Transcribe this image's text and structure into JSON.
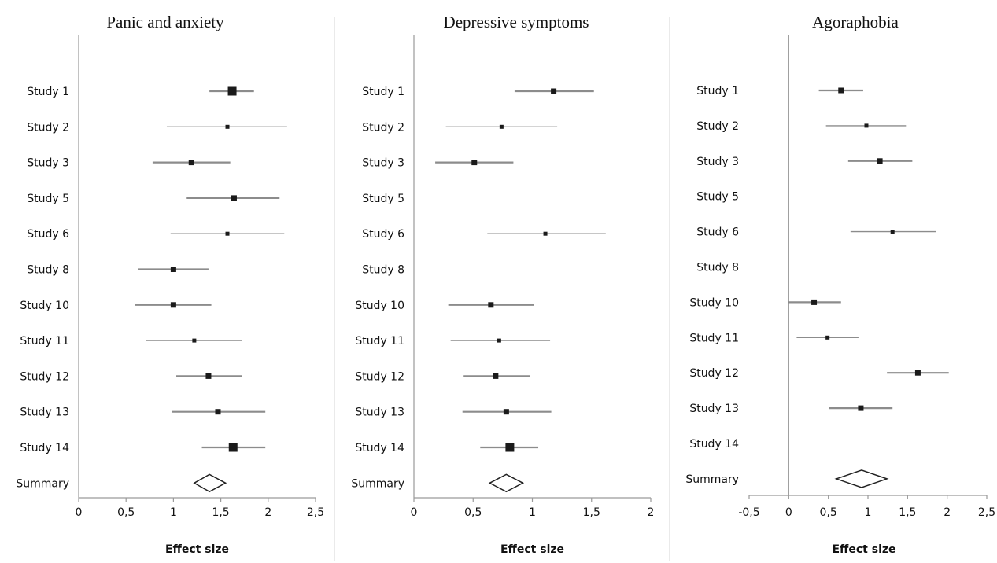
{
  "chart_data": [
    {
      "type": "scatter",
      "title": "Panic and anxiety",
      "xlabel": "Effect size",
      "xlim": [
        0,
        2.5
      ],
      "xticks": [
        0,
        0.5,
        1,
        1.5,
        2,
        2.5
      ],
      "xtick_labels": [
        "0",
        "0,5",
        "1",
        "1,5",
        "2",
        "2,5"
      ],
      "rows": [
        {
          "label": "Study 1",
          "estimate": 1.62,
          "ci": [
            1.38,
            1.85
          ],
          "weight": 3
        },
        {
          "label": "Study 2",
          "estimate": 1.57,
          "ci": [
            0.93,
            2.2
          ],
          "weight": 1
        },
        {
          "label": "Study 3",
          "estimate": 1.19,
          "ci": [
            0.78,
            1.6
          ],
          "weight": 2
        },
        {
          "label": "Study 5",
          "estimate": 1.64,
          "ci": [
            1.14,
            2.12
          ],
          "weight": 2
        },
        {
          "label": "Study 6",
          "estimate": 1.57,
          "ci": [
            0.97,
            2.17
          ],
          "weight": 1
        },
        {
          "label": "Study 8",
          "estimate": 1.0,
          "ci": [
            0.63,
            1.37
          ],
          "weight": 2
        },
        {
          "label": "Study 10",
          "estimate": 1.0,
          "ci": [
            0.59,
            1.4
          ],
          "weight": 2
        },
        {
          "label": "Study 11",
          "estimate": 1.22,
          "ci": [
            0.71,
            1.72
          ],
          "weight": 1
        },
        {
          "label": "Study 12",
          "estimate": 1.37,
          "ci": [
            1.03,
            1.72
          ],
          "weight": 2
        },
        {
          "label": "Study 13",
          "estimate": 1.47,
          "ci": [
            0.98,
            1.97
          ],
          "weight": 2
        },
        {
          "label": "Study 14",
          "estimate": 1.63,
          "ci": [
            1.3,
            1.97
          ],
          "weight": 3
        }
      ],
      "summary": {
        "label": "Summary",
        "estimate": 1.38,
        "ci": [
          1.22,
          1.55
        ]
      }
    },
    {
      "type": "scatter",
      "title": "Depressive symptoms",
      "xlabel": "Effect size",
      "xlim": [
        0,
        2
      ],
      "xticks": [
        0,
        0.5,
        1,
        1.5,
        2
      ],
      "xtick_labels": [
        "0",
        "0,5",
        "1",
        "1,5",
        "2"
      ],
      "rows": [
        {
          "label": "Study 1",
          "estimate": 1.18,
          "ci": [
            0.85,
            1.52
          ],
          "weight": 2
        },
        {
          "label": "Study 2",
          "estimate": 0.74,
          "ci": [
            0.27,
            1.21
          ],
          "weight": 1
        },
        {
          "label": "Study 3",
          "estimate": 0.51,
          "ci": [
            0.18,
            0.84
          ],
          "weight": 2
        },
        {
          "label": "Study 5",
          "estimate": null,
          "ci": null,
          "weight": 0
        },
        {
          "label": "Study 6",
          "estimate": 1.11,
          "ci": [
            0.62,
            1.62
          ],
          "weight": 1
        },
        {
          "label": "Study 8",
          "estimate": null,
          "ci": null,
          "weight": 0
        },
        {
          "label": "Study 10",
          "estimate": 0.65,
          "ci": [
            0.29,
            1.01
          ],
          "weight": 2
        },
        {
          "label": "Study 11",
          "estimate": 0.72,
          "ci": [
            0.31,
            1.15
          ],
          "weight": 1
        },
        {
          "label": "Study 12",
          "estimate": 0.69,
          "ci": [
            0.42,
            0.98
          ],
          "weight": 2
        },
        {
          "label": "Study 13",
          "estimate": 0.78,
          "ci": [
            0.41,
            1.16
          ],
          "weight": 2
        },
        {
          "label": "Study 14",
          "estimate": 0.81,
          "ci": [
            0.56,
            1.05
          ],
          "weight": 3
        }
      ],
      "summary": {
        "label": "Summary",
        "estimate": 0.78,
        "ci": [
          0.64,
          0.92
        ]
      }
    },
    {
      "type": "scatter",
      "title": "Agoraphobia",
      "xlabel": "Effect size",
      "xlim": [
        -0.5,
        2.5
      ],
      "xticks": [
        -0.5,
        0,
        0.5,
        1,
        1.5,
        2,
        2.5
      ],
      "xtick_labels": [
        "-0,5",
        "0",
        "0,5",
        "1",
        "1,5",
        "2",
        "2,5"
      ],
      "rows": [
        {
          "label": "Study 1",
          "estimate": 0.66,
          "ci": [
            0.38,
            0.94
          ],
          "weight": 2
        },
        {
          "label": "Study 2",
          "estimate": 0.98,
          "ci": [
            0.47,
            1.48
          ],
          "weight": 1
        },
        {
          "label": "Study 3",
          "estimate": 1.15,
          "ci": [
            0.75,
            1.56
          ],
          "weight": 2
        },
        {
          "label": "Study 5",
          "estimate": null,
          "ci": null,
          "weight": 0
        },
        {
          "label": "Study 6",
          "estimate": 1.31,
          "ci": [
            0.78,
            1.86
          ],
          "weight": 1
        },
        {
          "label": "Study 8",
          "estimate": null,
          "ci": null,
          "weight": 0
        },
        {
          "label": "Study 10",
          "estimate": 0.32,
          "ci": [
            -0.01,
            0.66
          ],
          "weight": 2
        },
        {
          "label": "Study 11",
          "estimate": 0.49,
          "ci": [
            0.1,
            0.88
          ],
          "weight": 1
        },
        {
          "label": "Study 12",
          "estimate": 1.63,
          "ci": [
            1.24,
            2.02
          ],
          "weight": 2
        },
        {
          "label": "Study 13",
          "estimate": 0.91,
          "ci": [
            0.51,
            1.31
          ],
          "weight": 2
        },
        {
          "label": "Study 14",
          "estimate": null,
          "ci": null,
          "weight": 0
        }
      ],
      "summary": {
        "label": "Summary",
        "estimate": 0.92,
        "ci": [
          0.6,
          1.24
        ]
      }
    }
  ],
  "colors": {
    "axis": "#9a9a9a",
    "ci_line": "#8c8c8c",
    "marker": "#1a1a1a",
    "separator": "#d6d6d6",
    "text": "#111111"
  }
}
